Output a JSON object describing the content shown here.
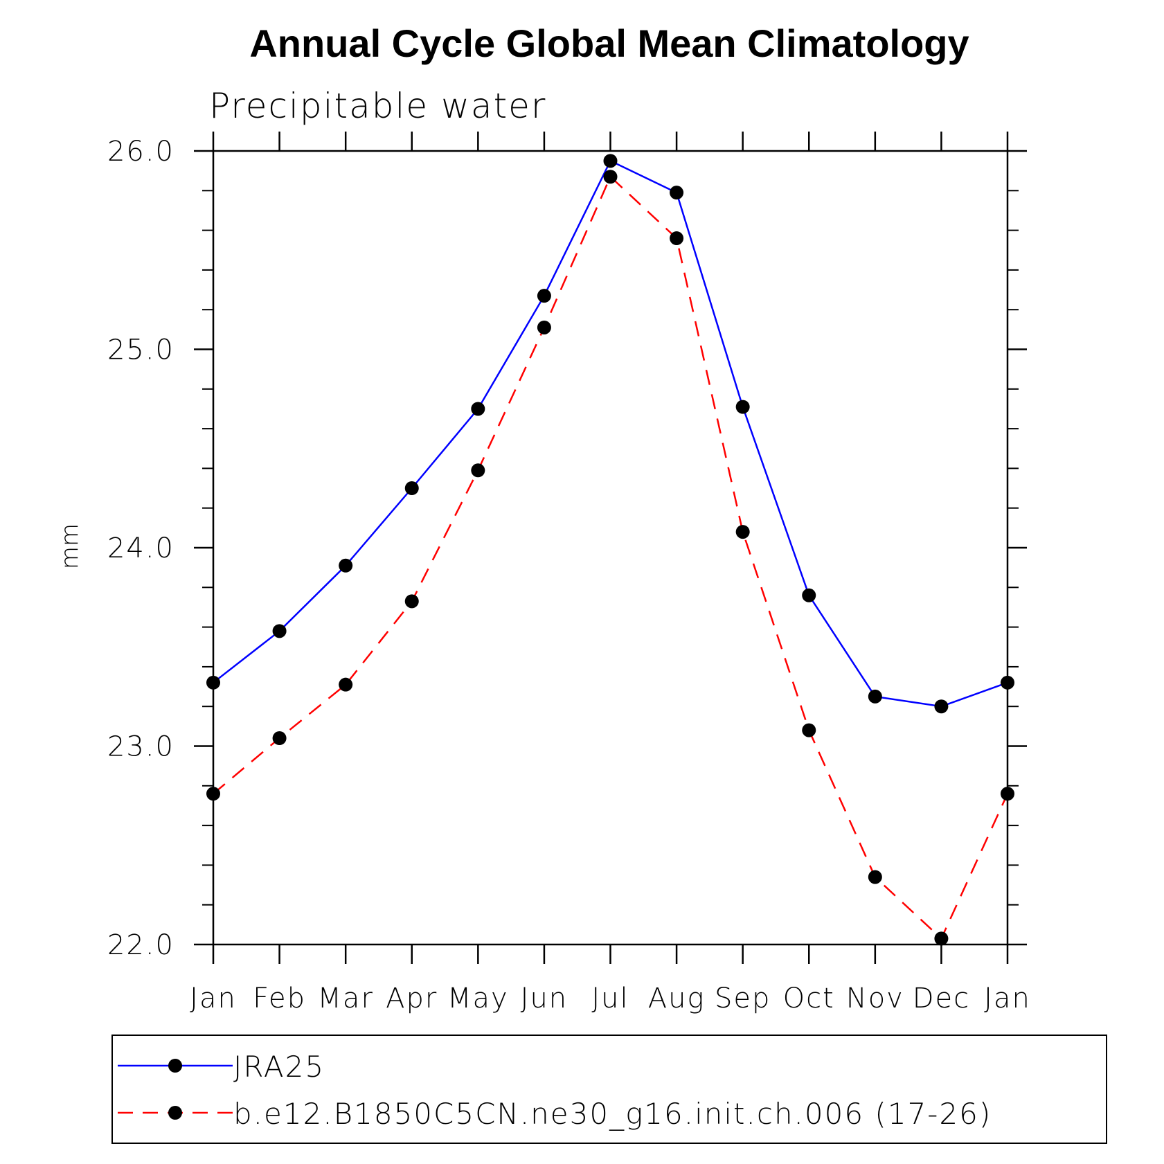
{
  "chart_data": {
    "type": "line",
    "title": "Annual Cycle Global Mean Climatology",
    "subtitle": "Precipitable water",
    "xlabel": "",
    "ylabel": "mm",
    "categories": [
      "Jan",
      "Feb",
      "Mar",
      "Apr",
      "May",
      "Jun",
      "Jul",
      "Aug",
      "Sep",
      "Oct",
      "Nov",
      "Dec",
      "Jan"
    ],
    "ylim": [
      22.0,
      26.0
    ],
    "yticks": [
      "22.0",
      "23.0",
      "24.0",
      "25.0",
      "26.0"
    ],
    "grid": false,
    "legend_position": "bottom",
    "series": [
      {
        "name": "JRA25",
        "color": "#0000ff",
        "dash": "solid",
        "marker": "filled-circle",
        "values": [
          23.32,
          23.58,
          23.91,
          24.3,
          24.7,
          25.27,
          25.95,
          25.79,
          24.71,
          23.76,
          23.25,
          23.2,
          23.32
        ]
      },
      {
        "name": "b.e12.B1850C5CN.ne30_g16.init.ch.006 (17-26)",
        "color": "#ff0000",
        "dash": "dashed",
        "marker": "filled-circle",
        "values": [
          22.76,
          23.04,
          23.31,
          23.73,
          24.39,
          25.11,
          25.87,
          25.56,
          24.08,
          23.08,
          22.34,
          22.03,
          22.76
        ]
      }
    ]
  }
}
